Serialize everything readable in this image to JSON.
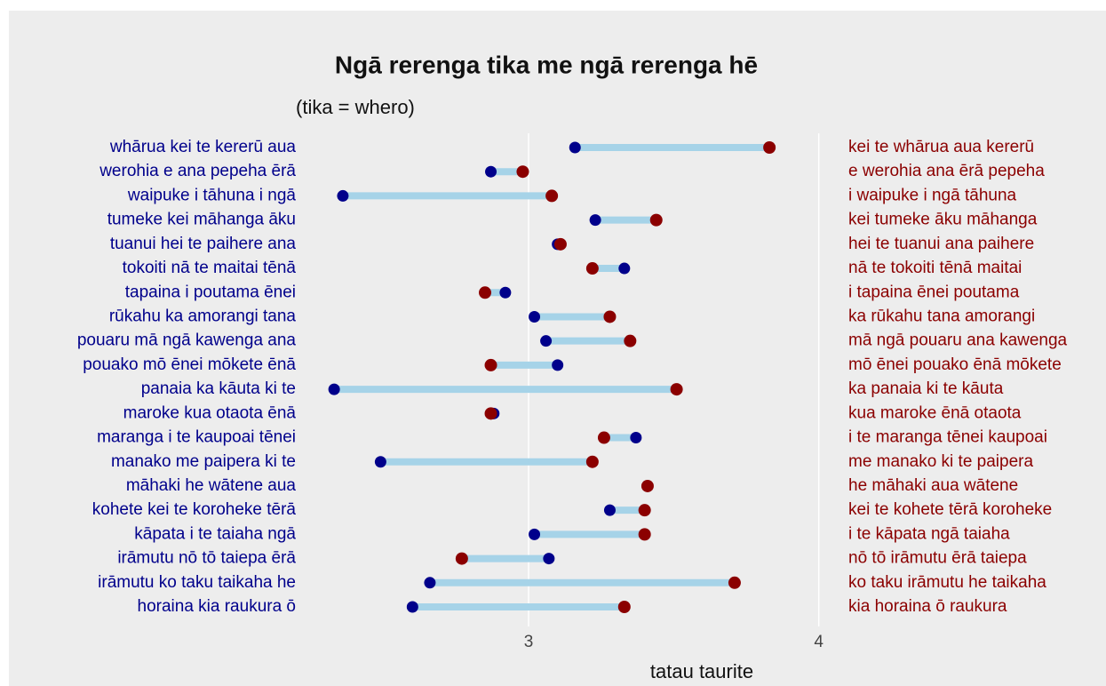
{
  "chart_data": {
    "type": "dumbbell",
    "title": "Ngā rerenga tika me ngā rerenga hē",
    "subtitle": "(tika = whero)",
    "xlabel": "tatau taurite",
    "xlim": [
      2.25,
      4.05
    ],
    "xticks": [
      3,
      4
    ],
    "grid": true,
    "segment_color": "#a6d3e8",
    "series": [
      {
        "color": "#00008b",
        "labels": [
          "whārua kei te kererū aua",
          "werohia e ana pepeha ērā",
          "waipuke i tāhuna i ngā",
          "tumeke kei māhanga āku",
          "tuanui hei te paihere ana",
          "tokoiti nā te maitai tēnā",
          "tapaina i poutama ēnei",
          "rūkahu ka amorangi tana",
          "pouaru mā ngā kawenga ana",
          "pouako mō ēnei mōkete ēnā",
          "panaia ka kāuta ki te",
          "maroke kua otaota ēnā",
          "maranga i te kaupoai tēnei",
          "manako me paipera ki te",
          "māhaki he wātene aua",
          "kohete kei te koroheke tērā",
          "kāpata i te taiaha ngā",
          "irāmutu nō tō taiepa ērā",
          "irāmutu ko taku taikaha he",
          "horaina kia raukura ō"
        ],
        "values": [
          3.16,
          2.87,
          2.36,
          3.23,
          3.1,
          3.33,
          2.92,
          3.02,
          3.06,
          3.1,
          2.33,
          2.88,
          3.37,
          2.49,
          3.41,
          3.28,
          3.02,
          3.07,
          2.66,
          2.6
        ]
      },
      {
        "color": "#8b0000",
        "labels": [
          "kei te whārua aua kererū",
          "e werohia ana ērā pepeha",
          "i waipuke i ngā tāhuna",
          "kei tumeke āku māhanga",
          "hei te tuanui ana paihere",
          "nā te tokoiti tēnā maitai",
          "i tapaina ēnei poutama",
          "ka rūkahu tana amorangi",
          "mā ngā pouaru ana kawenga",
          "mō ēnei pouako ēnā mōkete",
          "ka panaia ki te kāuta",
          "kua maroke ēnā otaota",
          "i te maranga tēnei kaupoai",
          "me manako ki te paipera",
          "he māhaki aua wātene",
          "kei te kohete tērā koroheke",
          "i te kāpata ngā taiaha",
          "nō tō irāmutu ērā taiepa",
          "ko taku irāmutu he taikaha",
          "kia horaina ō raukura"
        ],
        "values": [
          3.83,
          2.98,
          3.08,
          3.44,
          3.11,
          3.22,
          2.85,
          3.28,
          3.35,
          2.87,
          3.51,
          2.87,
          3.26,
          3.22,
          3.41,
          3.4,
          3.4,
          2.77,
          3.71,
          3.33
        ]
      }
    ]
  }
}
